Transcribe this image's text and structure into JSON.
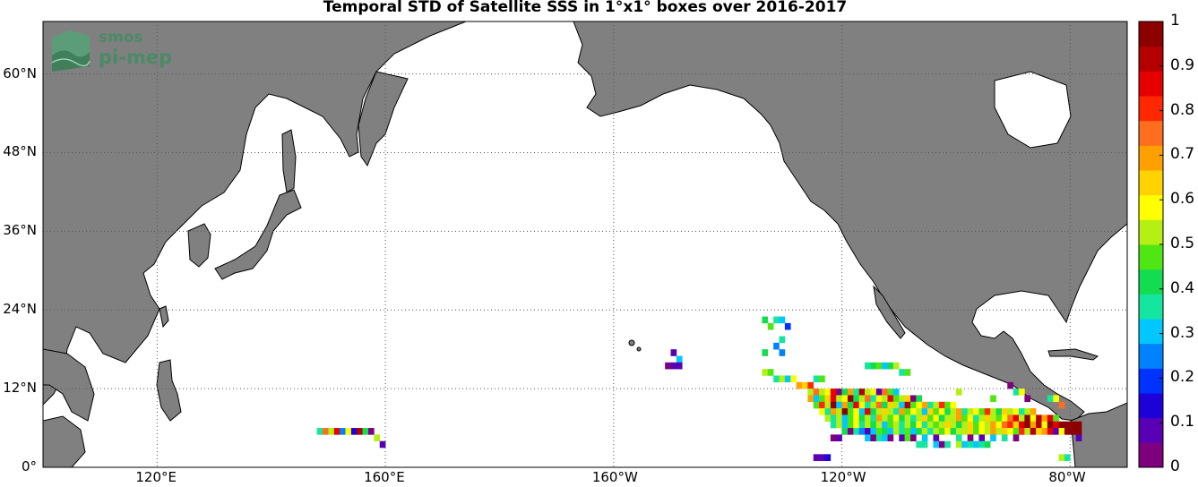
{
  "title": "Temporal STD of Satellite SSS in 1°x1° boxes over 2016-2017",
  "logo": {
    "line1": "smos",
    "line2": "pi-mep"
  },
  "colors": {
    "land": "#808080",
    "ocean": "#ffffff",
    "coast": "#000000",
    "grid": "#555555"
  },
  "map": {
    "lon_range": [
      100,
      290
    ],
    "lat_range": [
      0,
      68
    ],
    "lat_ticks": [
      {
        "value": 0,
        "label": "0°"
      },
      {
        "value": 12,
        "label": "12°N"
      },
      {
        "value": 24,
        "label": "24°N"
      },
      {
        "value": 36,
        "label": "36°N"
      },
      {
        "value": 48,
        "label": "48°N"
      },
      {
        "value": 60,
        "label": "60°N"
      }
    ],
    "lon_ticks": [
      {
        "value": 120,
        "label": "120°E"
      },
      {
        "value": 160,
        "label": "160°E"
      },
      {
        "value": 200,
        "label": "160°W"
      },
      {
        "value": 240,
        "label": "120°W"
      },
      {
        "value": 280,
        "label": "80°W"
      }
    ]
  },
  "colorbar": {
    "range": [
      0,
      1
    ],
    "ticks": [
      "0",
      "0.1",
      "0.2",
      "0.3",
      "0.4",
      "0.5",
      "0.6",
      "0.7",
      "0.8",
      "0.9",
      "1"
    ],
    "colors": [
      "#7f007f",
      "#5a00b4",
      "#1e00d8",
      "#0032ff",
      "#0082ff",
      "#00c8ff",
      "#14e6a0",
      "#14dc50",
      "#50e614",
      "#b4f014",
      "#ffff00",
      "#ffd200",
      "#ffa000",
      "#ff6e1e",
      "#ff2800",
      "#e60000",
      "#b40000",
      "#8c0000"
    ]
  },
  "chart_data": {
    "type": "heatmap",
    "title": "Temporal STD of Satellite SSS in 1°x1° boxes over 2016-2017",
    "xlabel": "",
    "ylabel": "",
    "x_units": "degrees longitude (east, 0-360)",
    "y_units": "degrees latitude",
    "value_range": [
      0,
      1
    ],
    "cells": [
      [
        148,
        5,
        0.35
      ],
      [
        149,
        5,
        0.75
      ],
      [
        150,
        5,
        0.55
      ],
      [
        151,
        5,
        0.85
      ],
      [
        152,
        5,
        0.25
      ],
      [
        153,
        5,
        0.6
      ],
      [
        154,
        5,
        0.15
      ],
      [
        155,
        5,
        0.9
      ],
      [
        156,
        5,
        0.4
      ],
      [
        157,
        5,
        0.05
      ],
      [
        158,
        4,
        0.5
      ],
      [
        159,
        3,
        0.1
      ],
      [
        210,
        17,
        0.1
      ],
      [
        211,
        16,
        0.3
      ],
      [
        209,
        15,
        0.05
      ],
      [
        210,
        15,
        0.1
      ],
      [
        211,
        15,
        0.1
      ],
      [
        226,
        22,
        0.4
      ],
      [
        227,
        21,
        0.45
      ],
      [
        228,
        22,
        0.35
      ],
      [
        229,
        22,
        0.3
      ],
      [
        230,
        21,
        0.2
      ],
      [
        229,
        19,
        0.35
      ],
      [
        228,
        18,
        0.25
      ],
      [
        226,
        17,
        0.4
      ],
      [
        229,
        17,
        0.25
      ],
      [
        226,
        14,
        0.55
      ],
      [
        227,
        14,
        0.45
      ],
      [
        228,
        13,
        0.35
      ],
      [
        229,
        13,
        0.5
      ],
      [
        230,
        13,
        0.3
      ],
      [
        231,
        13,
        0.6
      ],
      [
        232,
        12,
        0.7
      ],
      [
        233,
        12,
        0.65
      ],
      [
        234,
        12,
        0.8
      ],
      [
        235,
        13,
        0.35
      ],
      [
        236,
        13,
        0.45
      ],
      [
        244,
        15,
        0.35
      ],
      [
        245,
        15,
        0.4
      ],
      [
        246,
        15,
        0.45
      ],
      [
        247,
        15,
        0.3
      ],
      [
        248,
        15,
        0.4
      ],
      [
        249,
        15,
        0.55
      ],
      [
        250,
        14,
        0.35
      ],
      [
        251,
        14,
        0.45
      ],
      [
        234,
        11,
        0.55
      ],
      [
        235,
        11,
        0.75
      ],
      [
        236,
        11,
        0.5
      ],
      [
        237,
        11,
        0.6
      ],
      [
        238,
        11,
        0.85
      ],
      [
        239,
        11,
        0.05
      ],
      [
        240,
        11,
        0.4
      ],
      [
        241,
        11,
        0.7
      ],
      [
        242,
        11,
        0.35
      ],
      [
        243,
        11,
        0.9
      ],
      [
        244,
        11,
        0.55
      ],
      [
        245,
        11,
        0.6
      ],
      [
        246,
        11,
        0.1
      ],
      [
        247,
        11,
        0.75
      ],
      [
        248,
        11,
        0.45
      ],
      [
        249,
        11,
        0.3
      ],
      [
        234,
        10,
        0.7
      ],
      [
        235,
        10,
        0.3
      ],
      [
        236,
        10,
        0.45
      ],
      [
        237,
        10,
        0.65
      ],
      [
        238,
        10,
        0.85
      ],
      [
        239,
        10,
        0.5
      ],
      [
        240,
        10,
        0.6
      ],
      [
        241,
        10,
        0.95
      ],
      [
        242,
        10,
        0.4
      ],
      [
        243,
        10,
        0.55
      ],
      [
        244,
        10,
        0.75
      ],
      [
        245,
        10,
        0.35
      ],
      [
        246,
        10,
        0.6
      ],
      [
        247,
        10,
        0.5
      ],
      [
        248,
        10,
        0.85
      ],
      [
        249,
        10,
        0.45
      ],
      [
        250,
        10,
        0.55
      ],
      [
        251,
        10,
        0.65
      ],
      [
        252,
        10,
        0.05
      ],
      [
        253,
        10,
        0.4
      ],
      [
        254,
        9,
        0.7
      ],
      [
        235,
        9,
        0.45
      ],
      [
        236,
        9,
        0.8
      ],
      [
        237,
        9,
        0.55
      ],
      [
        238,
        9,
        0.95
      ],
      [
        239,
        9,
        0.3
      ],
      [
        240,
        9,
        0.7
      ],
      [
        241,
        9,
        0.4
      ],
      [
        242,
        9,
        0.85
      ],
      [
        243,
        9,
        0.6
      ],
      [
        244,
        9,
        0.35
      ],
      [
        245,
        9,
        0.5
      ],
      [
        246,
        9,
        0.75
      ],
      [
        247,
        9,
        0.4
      ],
      [
        248,
        9,
        0.65
      ],
      [
        249,
        9,
        0.55
      ],
      [
        250,
        9,
        0.3
      ],
      [
        251,
        9,
        0.9
      ],
      [
        252,
        9,
        0.45
      ],
      [
        253,
        9,
        0.6
      ],
      [
        255,
        9,
        0.35
      ],
      [
        256,
        9,
        0.5
      ],
      [
        257,
        9,
        0.8
      ],
      [
        258,
        9,
        0.45
      ],
      [
        259,
        9,
        0.6
      ],
      [
        236,
        8,
        0.6
      ],
      [
        237,
        8,
        0.35
      ],
      [
        238,
        8,
        0.7
      ],
      [
        239,
        8,
        0.5
      ],
      [
        240,
        8,
        0.95
      ],
      [
        241,
        8,
        0.45
      ],
      [
        242,
        8,
        0.6
      ],
      [
        243,
        8,
        0.3
      ],
      [
        244,
        8,
        0.85
      ],
      [
        245,
        8,
        0.4
      ],
      [
        246,
        8,
        0.55
      ],
      [
        247,
        8,
        0.65
      ],
      [
        248,
        8,
        0.5
      ],
      [
        249,
        8,
        0.35
      ],
      [
        250,
        8,
        0.7
      ],
      [
        251,
        8,
        0.45
      ],
      [
        252,
        8,
        0.6
      ],
      [
        253,
        8,
        0.55
      ],
      [
        254,
        8,
        0.3
      ],
      [
        255,
        8,
        0.65
      ],
      [
        256,
        8,
        0.45
      ],
      [
        257,
        8,
        0.6
      ],
      [
        258,
        8,
        0.4
      ],
      [
        259,
        8,
        0.55
      ],
      [
        260,
        8,
        0.7
      ],
      [
        261,
        8,
        0.35
      ],
      [
        262,
        8,
        0.5
      ],
      [
        263,
        8,
        0.6
      ],
      [
        264,
        8,
        0.45
      ],
      [
        265,
        8,
        0.8
      ],
      [
        266,
        8,
        0.55
      ],
      [
        267,
        8,
        0.4
      ],
      [
        268,
        8,
        0.65
      ],
      [
        269,
        8,
        0.5
      ],
      [
        270,
        8,
        0.6
      ],
      [
        271,
        8,
        0.35
      ],
      [
        272,
        8,
        0.55
      ],
      [
        273,
        8,
        0.7
      ],
      [
        237,
        7,
        0.5
      ],
      [
        238,
        7,
        0.35
      ],
      [
        239,
        7,
        0.55
      ],
      [
        240,
        7,
        0.3
      ],
      [
        241,
        7,
        0.45
      ],
      [
        242,
        7,
        0.6
      ],
      [
        243,
        7,
        0.4
      ],
      [
        244,
        7,
        0.55
      ],
      [
        245,
        7,
        0.35
      ],
      [
        246,
        7,
        0.7
      ],
      [
        247,
        7,
        0.5
      ],
      [
        248,
        7,
        0.45
      ],
      [
        249,
        7,
        0.6
      ],
      [
        250,
        7,
        0.4
      ],
      [
        251,
        7,
        0.55
      ],
      [
        252,
        7,
        0.35
      ],
      [
        253,
        7,
        0.5
      ],
      [
        254,
        7,
        0.65
      ],
      [
        255,
        7,
        0.45
      ],
      [
        256,
        7,
        0.6
      ],
      [
        257,
        7,
        0.4
      ],
      [
        258,
        7,
        0.55
      ],
      [
        259,
        7,
        0.5
      ],
      [
        260,
        7,
        0.7
      ],
      [
        261,
        7,
        0.45
      ],
      [
        262,
        7,
        0.6
      ],
      [
        263,
        7,
        0.35
      ],
      [
        264,
        7,
        0.55
      ],
      [
        265,
        7,
        0.65
      ],
      [
        266,
        7,
        0.5
      ],
      [
        267,
        7,
        0.45
      ],
      [
        268,
        7,
        0.6
      ],
      [
        269,
        7,
        0.75
      ],
      [
        270,
        7,
        0.85
      ],
      [
        271,
        7,
        0.5
      ],
      [
        272,
        7,
        0.95
      ],
      [
        273,
        7,
        0.6
      ],
      [
        274,
        7,
        0.9
      ],
      [
        275,
        7,
        0.7
      ],
      [
        276,
        7,
        0.85
      ],
      [
        277,
        7,
        0.45
      ],
      [
        238,
        6,
        0.35
      ],
      [
        239,
        6,
        0.55
      ],
      [
        240,
        6,
        0.3
      ],
      [
        241,
        6,
        0.45
      ],
      [
        242,
        6,
        0.6
      ],
      [
        243,
        6,
        0.35
      ],
      [
        244,
        6,
        0.5
      ],
      [
        245,
        6,
        0.4
      ],
      [
        246,
        6,
        0.55
      ],
      [
        247,
        6,
        0.3
      ],
      [
        248,
        6,
        0.45
      ],
      [
        249,
        6,
        0.5
      ],
      [
        250,
        6,
        0.35
      ],
      [
        251,
        6,
        0.55
      ],
      [
        252,
        6,
        0.4
      ],
      [
        253,
        6,
        0.6
      ],
      [
        254,
        6,
        0.35
      ],
      [
        255,
        6,
        0.5
      ],
      [
        256,
        6,
        0.45
      ],
      [
        257,
        6,
        0.55
      ],
      [
        258,
        6,
        0.65
      ],
      [
        259,
        6,
        0.5
      ],
      [
        260,
        6,
        0.4
      ],
      [
        261,
        6,
        0.55
      ],
      [
        262,
        6,
        0.65
      ],
      [
        263,
        6,
        0.45
      ],
      [
        264,
        6,
        0.6
      ],
      [
        265,
        6,
        0.55
      ],
      [
        266,
        6,
        0.7
      ],
      [
        267,
        6,
        0.6
      ],
      [
        268,
        6,
        0.75
      ],
      [
        269,
        6,
        0.8
      ],
      [
        270,
        6,
        0.65
      ],
      [
        271,
        6,
        0.85
      ],
      [
        272,
        6,
        0.95
      ],
      [
        273,
        6,
        0.7
      ],
      [
        274,
        6,
        0.9
      ],
      [
        275,
        6,
        0.6
      ],
      [
        276,
        6,
        0.95
      ],
      [
        277,
        6,
        0.85
      ],
      [
        278,
        6,
        0.95
      ],
      [
        279,
        6,
        0.95
      ],
      [
        280,
        6,
        0.95
      ],
      [
        281,
        6,
        0.95
      ],
      [
        240,
        5,
        0.4
      ],
      [
        241,
        5,
        0.05
      ],
      [
        242,
        5,
        0.35
      ],
      [
        243,
        5,
        0.25
      ],
      [
        244,
        5,
        0.1
      ],
      [
        245,
        5,
        0.3
      ],
      [
        246,
        5,
        0.45
      ],
      [
        247,
        5,
        0.4
      ],
      [
        248,
        5,
        0.3
      ],
      [
        249,
        5,
        0.5
      ],
      [
        250,
        5,
        0.35
      ],
      [
        251,
        5,
        0.45
      ],
      [
        252,
        5,
        0.3
      ],
      [
        253,
        5,
        0.4
      ],
      [
        254,
        5,
        0.55
      ],
      [
        255,
        5,
        0.35
      ],
      [
        256,
        5,
        0.5
      ],
      [
        257,
        5,
        0.45
      ],
      [
        258,
        5,
        0.6
      ],
      [
        259,
        5,
        0.4
      ],
      [
        260,
        5,
        0.55
      ],
      [
        261,
        5,
        0.5
      ],
      [
        262,
        5,
        0.65
      ],
      [
        263,
        5,
        0.45
      ],
      [
        264,
        5,
        0.6
      ],
      [
        265,
        5,
        0.55
      ],
      [
        266,
        5,
        0.7
      ],
      [
        267,
        5,
        0.5
      ],
      [
        268,
        5,
        0.65
      ],
      [
        269,
        5,
        0.6
      ],
      [
        270,
        5,
        0.45
      ],
      [
        271,
        5,
        0.8
      ],
      [
        272,
        5,
        0.55
      ],
      [
        273,
        5,
        0.9
      ],
      [
        274,
        5,
        0.65
      ],
      [
        275,
        5,
        0.7
      ],
      [
        276,
        5,
        0.85
      ],
      [
        277,
        5,
        0.1
      ],
      [
        278,
        5,
        0.6
      ],
      [
        279,
        5,
        0.95
      ],
      [
        280,
        5,
        0.95
      ],
      [
        281,
        5,
        0.95
      ],
      [
        238,
        4,
        0.05
      ],
      [
        239,
        4,
        0.1
      ],
      [
        244,
        4,
        0.3
      ],
      [
        245,
        4,
        0.05
      ],
      [
        246,
        4,
        0.35
      ],
      [
        247,
        4,
        0.3
      ],
      [
        248,
        4,
        0.05
      ],
      [
        250,
        4,
        0.1
      ],
      [
        251,
        4,
        0.45
      ],
      [
        252,
        4,
        0.05
      ],
      [
        254,
        4,
        0.3
      ],
      [
        256,
        4,
        0.1
      ],
      [
        260,
        4,
        0.35
      ],
      [
        262,
        4,
        0.05
      ],
      [
        264,
        4,
        0.1
      ],
      [
        266,
        4,
        0.3
      ],
      [
        268,
        4,
        0.35
      ],
      [
        270,
        4,
        0.05
      ],
      [
        281,
        4,
        0.1
      ],
      [
        253,
        3,
        0.35
      ],
      [
        254,
        3,
        0.35
      ],
      [
        256,
        3,
        0.3
      ],
      [
        257,
        3,
        0.05
      ],
      [
        258,
        3,
        0.35
      ],
      [
        260,
        3,
        0.55
      ],
      [
        261,
        3,
        0.3
      ],
      [
        262,
        3,
        0.35
      ],
      [
        263,
        3,
        0.3
      ],
      [
        264,
        3,
        0.35
      ],
      [
        265,
        3,
        0.4
      ],
      [
        235,
        1,
        0.1
      ],
      [
        236,
        1,
        0.1
      ],
      [
        237,
        1,
        0.15
      ],
      [
        278,
        1,
        0.55
      ],
      [
        279,
        1,
        0.35
      ],
      [
        269,
        12,
        0.05
      ],
      [
        270,
        11,
        0.35
      ],
      [
        271,
        11,
        0.6
      ],
      [
        272,
        10,
        0.05
      ],
      [
        260,
        11,
        0.55
      ],
      [
        266,
        10,
        0.45
      ],
      [
        276,
        10,
        0.35
      ],
      [
        277,
        10,
        0.6
      ],
      [
        278,
        9,
        0.75
      ]
    ]
  }
}
